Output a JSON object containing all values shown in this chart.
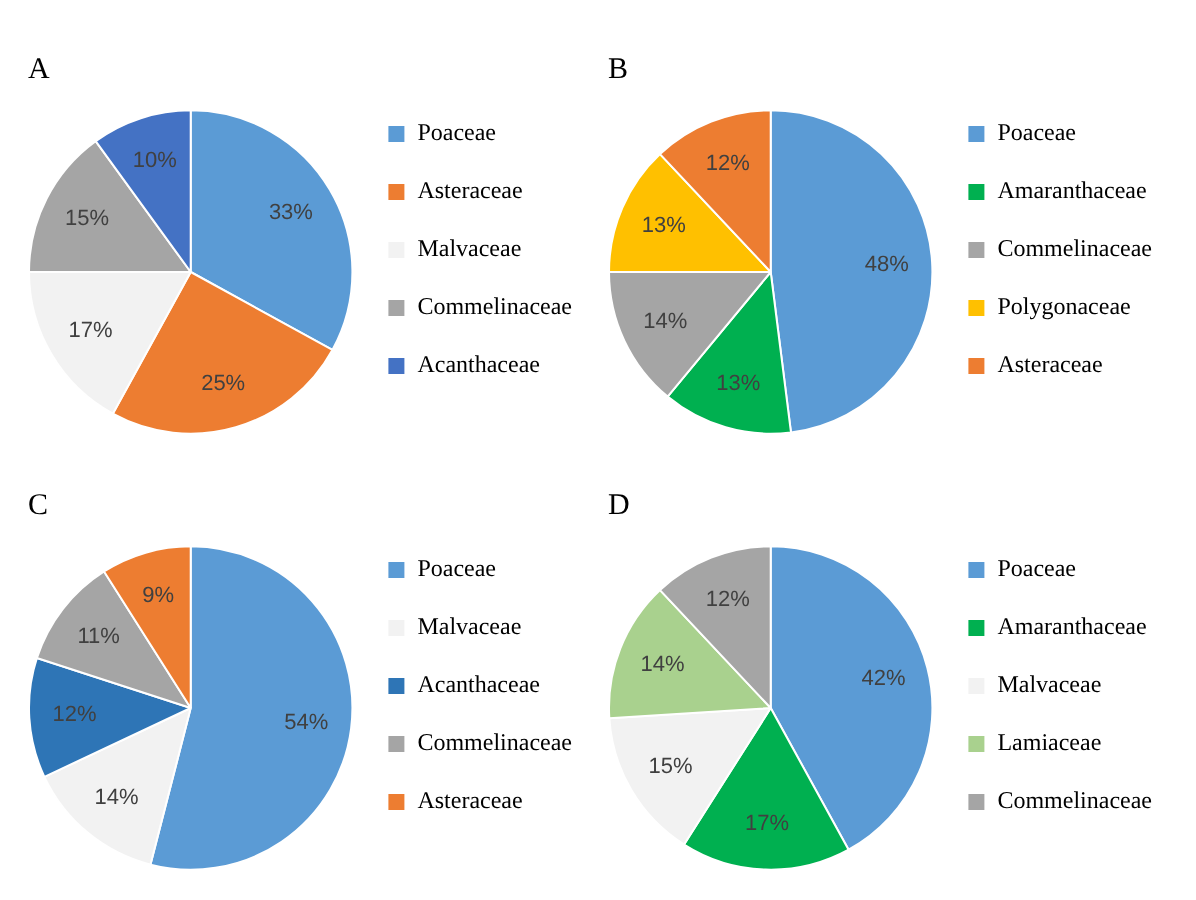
{
  "chart_data": [
    {
      "type": "pie",
      "title": "A",
      "categories": [
        "Poaceae",
        "Asteraceae",
        "Malvaceae",
        "Commelinaceae",
        "Acanthaceae"
      ],
      "values": [
        33,
        25,
        17,
        15,
        10
      ],
      "colors": [
        "#5b9bd5",
        "#ed7d31",
        "#f2f2f2",
        "#a5a5a5",
        "#4472c4"
      ],
      "value_labels": [
        "33%",
        "25%",
        "17%",
        "15%",
        "10%"
      ],
      "legend": "right"
    },
    {
      "type": "pie",
      "title": "B",
      "categories": [
        "Poaceae",
        "Amaranthaceae",
        "Commelinaceae",
        "Polygonaceae",
        "Asteraceae"
      ],
      "values": [
        48,
        13,
        14,
        13,
        12
      ],
      "colors": [
        "#5b9bd5",
        "#00b050",
        "#a5a5a5",
        "#ffc000",
        "#ed7d31"
      ],
      "value_labels": [
        "48%",
        "13%",
        "14%",
        "13%",
        "12%"
      ],
      "legend": "right"
    },
    {
      "type": "pie",
      "title": "C",
      "categories": [
        "Poaceae",
        "Malvaceae",
        "Acanthaceae",
        "Commelinaceae",
        "Asteraceae"
      ],
      "values": [
        54,
        14,
        12,
        11,
        9
      ],
      "colors": [
        "#5b9bd5",
        "#f2f2f2",
        "#2e75b6",
        "#a5a5a5",
        "#ed7d31"
      ],
      "value_labels": [
        "54%",
        "14%",
        "12%",
        "11%",
        "9%"
      ],
      "legend": "right"
    },
    {
      "type": "pie",
      "title": "D",
      "categories": [
        "Poaceae",
        "Amaranthaceae",
        "Malvaceae",
        "Lamiaceae",
        "Commelinaceae"
      ],
      "values": [
        42,
        17,
        15,
        14,
        12
      ],
      "colors": [
        "#5b9bd5",
        "#00b050",
        "#f2f2f2",
        "#a9d18e",
        "#a5a5a5"
      ],
      "value_labels": [
        "42%",
        "17%",
        "15%",
        "14%",
        "12%"
      ],
      "legend": "right"
    }
  ]
}
